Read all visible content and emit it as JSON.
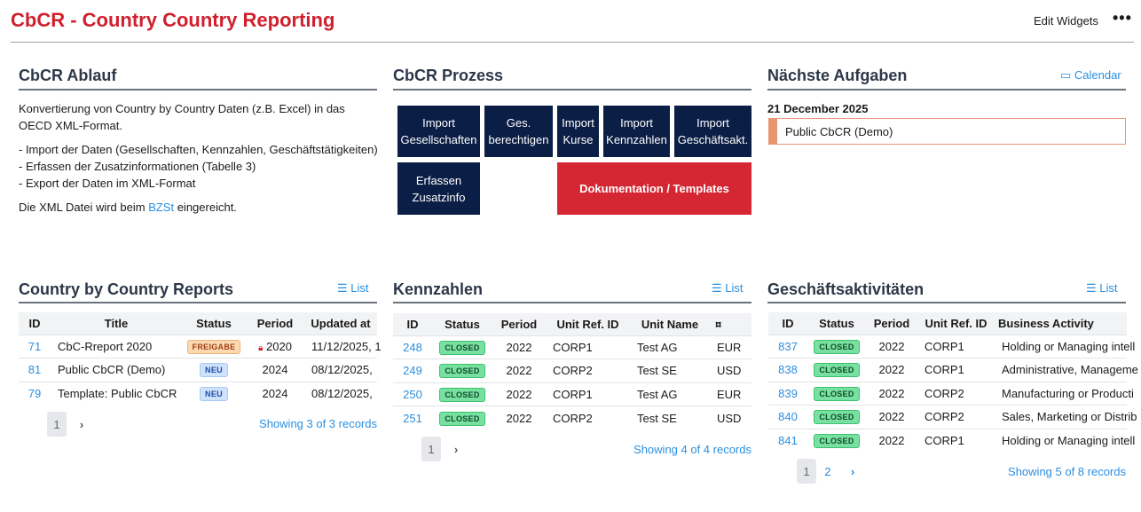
{
  "header": {
    "title": "CbCR - Country Country Reporting",
    "edit_widgets": "Edit Widgets",
    "more": "•••"
  },
  "ablauf": {
    "title": "CbCR Ablauf",
    "intro": "Konvertierung von Country by Country Daten (z.B. Excel) in das OECD XML-Format.",
    "steps": [
      "- Import der Daten (Gesellschaften, Kennzahlen, Geschäftstätigkeiten)",
      "- Erfassen der Zusatzinformationen (Tabelle 3)",
      "- Export der Daten im XML-Format"
    ],
    "submit_pre": "Die XML Datei wird beim ",
    "submit_link": "BZSt",
    "submit_post": " eingereicht."
  },
  "prozess": {
    "title": "CbCR Prozess",
    "buttons": [
      "Import Gesellschaften",
      "Ges. berechtigen",
      "Import Kurse",
      "Import Kennzahlen",
      "Import Geschäftsakt.",
      "Erfassen Zusatzinfo",
      "Dokumentation / Templates"
    ],
    "colors": {
      "primary": "#0b1e45",
      "accent": "#d42733"
    }
  },
  "aufgaben": {
    "title": "Nächste Aufgaben",
    "calendar": "Calendar",
    "date": "21 December 2025",
    "items": [
      "Public CbCR (Demo)"
    ]
  },
  "reports": {
    "title": "Country by Country Reports",
    "list": "List",
    "columns": [
      "ID",
      "Title",
      "Status",
      "Period",
      "Updated at"
    ],
    "rows": [
      {
        "id": "71",
        "title": "CbC-Rreport 2020",
        "status": "FREIGABE",
        "period": "2020",
        "locked": true,
        "updated": "11/12/2025, 1"
      },
      {
        "id": "81",
        "title": "Public CbCR (Demo)",
        "status": "NEU",
        "period": "2024",
        "updated": "08/12/2025,"
      },
      {
        "id": "79",
        "title": "Template: Public CbCR",
        "status": "NEU",
        "period": "2024",
        "updated": "08/12/2025,"
      }
    ],
    "pages": [
      "1"
    ],
    "showing": "Showing 3 of 3 records"
  },
  "kennzahlen": {
    "title": "Kennzahlen",
    "list": "List",
    "columns": [
      "ID",
      "Status",
      "Period",
      "Unit Ref. ID",
      "Unit Name",
      "¤"
    ],
    "rows": [
      {
        "id": "248",
        "status": "CLOSED",
        "period": "2022",
        "ref": "CORP1",
        "name": "Test AG",
        "cur": "EUR"
      },
      {
        "id": "249",
        "status": "CLOSED",
        "period": "2022",
        "ref": "CORP2",
        "name": "Test SE",
        "cur": "USD"
      },
      {
        "id": "250",
        "status": "CLOSED",
        "period": "2022",
        "ref": "CORP1",
        "name": "Test AG",
        "cur": "EUR"
      },
      {
        "id": "251",
        "status": "CLOSED",
        "period": "2022",
        "ref": "CORP2",
        "name": "Test SE",
        "cur": "USD"
      }
    ],
    "pages": [
      "1"
    ],
    "showing": "Showing 4 of 4 records"
  },
  "geschaeft": {
    "title": "Geschäftsaktivitäten",
    "list": "List",
    "columns": [
      "ID",
      "Status",
      "Period",
      "Unit Ref. ID",
      "Business Activity"
    ],
    "rows": [
      {
        "id": "837",
        "status": "CLOSED",
        "period": "2022",
        "ref": "CORP1",
        "activity": "Holding or Managing intell"
      },
      {
        "id": "838",
        "status": "CLOSED",
        "period": "2022",
        "ref": "CORP1",
        "activity": "Administrative, Manageme"
      },
      {
        "id": "839",
        "status": "CLOSED",
        "period": "2022",
        "ref": "CORP2",
        "activity": "Manufacturing or Producti"
      },
      {
        "id": "840",
        "status": "CLOSED",
        "period": "2022",
        "ref": "CORP2",
        "activity": "Sales, Marketing or Distrib"
      },
      {
        "id": "841",
        "status": "CLOSED",
        "period": "2022",
        "ref": "CORP1",
        "activity": "Holding or Managing intell"
      }
    ],
    "pages": [
      "1",
      "2"
    ],
    "showing": "Showing 5 of 8 records"
  }
}
